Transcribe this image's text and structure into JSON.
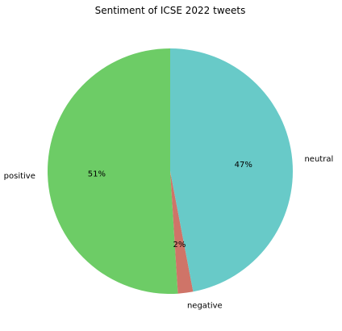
{
  "chart_data": {
    "type": "pie",
    "title": "Sentiment of ICSE 2022 tweets",
    "start_angle_deg": 90,
    "direction": "counterclockwise",
    "legend": "none",
    "slices": [
      {
        "label": "positive",
        "value": 51,
        "pct_label": "51%",
        "color": "#6dcc66"
      },
      {
        "label": "negative",
        "value": 2,
        "pct_label": "2%",
        "color": "#cf7468"
      },
      {
        "label": "neutral",
        "value": 47,
        "pct_label": "47%",
        "color": "#68cac8"
      }
    ]
  }
}
